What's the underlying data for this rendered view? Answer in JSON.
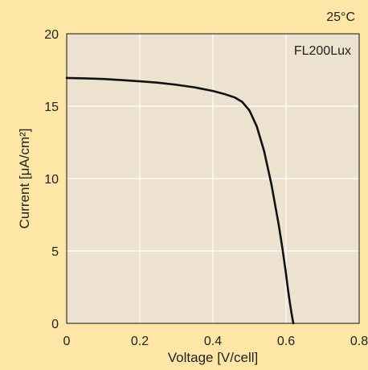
{
  "chart_data": {
    "type": "line",
    "xlabel": "Voltage [V/cell]",
    "ylabel": "Current [μA/cm²]",
    "xlim": [
      0,
      0.8
    ],
    "ylim": [
      0,
      20
    ],
    "xticks": [
      "0",
      "0.2",
      "0.4",
      "0.6",
      "0.8"
    ],
    "yticks": [
      "0",
      "5",
      "10",
      "15",
      "20"
    ],
    "grid": true,
    "annotations": {
      "temperature": "25°C",
      "series_label": "FL200Lux"
    },
    "series": [
      {
        "name": "FL200Lux",
        "x": [
          0,
          0.05,
          0.1,
          0.15,
          0.2,
          0.25,
          0.3,
          0.35,
          0.4,
          0.43,
          0.46,
          0.48,
          0.5,
          0.52,
          0.54,
          0.56,
          0.58,
          0.59,
          0.6,
          0.605,
          0.61,
          0.615,
          0.618,
          0.62
        ],
        "y": [
          16.95,
          16.92,
          16.88,
          16.8,
          16.72,
          16.62,
          16.48,
          16.3,
          16.05,
          15.85,
          15.6,
          15.3,
          14.7,
          13.6,
          11.9,
          9.6,
          6.8,
          5.2,
          3.4,
          2.4,
          1.5,
          0.7,
          0.25,
          0
        ]
      }
    ],
    "colors": {
      "background": "#fde6a6",
      "plot_area": "#ece2cf",
      "grid": "#ffffff",
      "line": "#111111"
    }
  }
}
